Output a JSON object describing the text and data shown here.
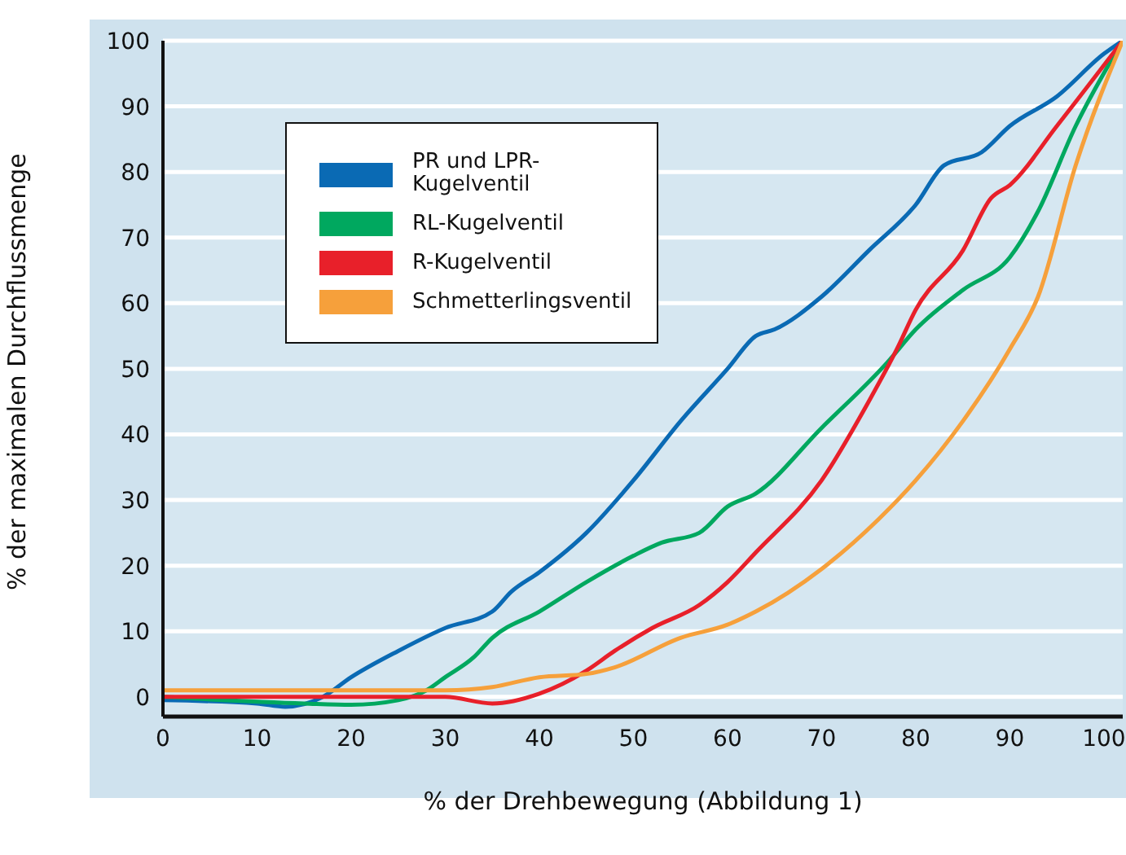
{
  "chart_data": {
    "type": "line",
    "xlabel": "% der Drehbewegung (Abbildung 1)",
    "ylabel": "% der maximalen Durchflussmenge",
    "xlim": [
      0,
      102
    ],
    "xticks": [
      0,
      10,
      20,
      30,
      40,
      50,
      60,
      70,
      80,
      90,
      100
    ],
    "ylim": [
      -3,
      100
    ],
    "yticks": [
      0,
      10,
      20,
      30,
      40,
      50,
      60,
      70,
      80,
      90,
      100
    ],
    "grid": "y",
    "legend": "top left",
    "marker": "none",
    "line_style": "solid",
    "series": [
      {
        "name": "PR und LPR-Kugelventil",
        "color": "#0a6ab4",
        "x": [
          0,
          10,
          13,
          17,
          20,
          25,
          30,
          35,
          37,
          40,
          45,
          50,
          55,
          60,
          63,
          65,
          70,
          75,
          80,
          83,
          87,
          90,
          95,
          100,
          102
        ],
        "values": [
          -0.5,
          -1,
          -1.5,
          0,
          3,
          7,
          10.5,
          13,
          16,
          19,
          25,
          33,
          42,
          50,
          55,
          56,
          61,
          68,
          75,
          81,
          83,
          87,
          91.5,
          98,
          100
        ]
      },
      {
        "name": "RL-Kugelventil",
        "color": "#00a85f",
        "x": [
          0,
          15,
          20,
          25,
          28,
          30,
          33,
          35,
          40,
          45,
          50,
          53,
          57,
          60,
          63,
          70,
          77,
          80,
          85,
          90,
          93,
          97,
          102
        ],
        "values": [
          0,
          -1,
          -1.2,
          -0.5,
          1,
          3,
          6,
          9,
          13,
          17.5,
          21.5,
          23.5,
          25,
          29,
          31,
          41,
          51,
          56,
          62,
          67,
          74,
          87,
          100
        ]
      },
      {
        "name": "R-Kugelventil",
        "color": "#e8202a",
        "x": [
          0,
          30,
          35,
          40,
          45,
          48,
          52,
          57,
          60,
          63,
          70,
          75,
          78,
          80,
          85,
          88,
          90,
          95,
          102
        ],
        "values": [
          0,
          0,
          -1,
          0.5,
          4,
          7,
          10.5,
          14,
          17.5,
          22,
          33,
          45,
          53,
          59,
          68,
          76,
          78,
          87,
          100
        ]
      },
      {
        "name": "Schmetterlingsventil",
        "color": "#f6a03b",
        "x": [
          0,
          30,
          35,
          40,
          45,
          48,
          55,
          60,
          63,
          70,
          76,
          80,
          85,
          90,
          93,
          97,
          102
        ],
        "values": [
          1,
          1,
          1.5,
          3,
          3.5,
          4.5,
          9,
          11,
          13,
          19.5,
          27,
          33,
          42,
          53,
          61,
          81,
          100
        ]
      }
    ]
  }
}
